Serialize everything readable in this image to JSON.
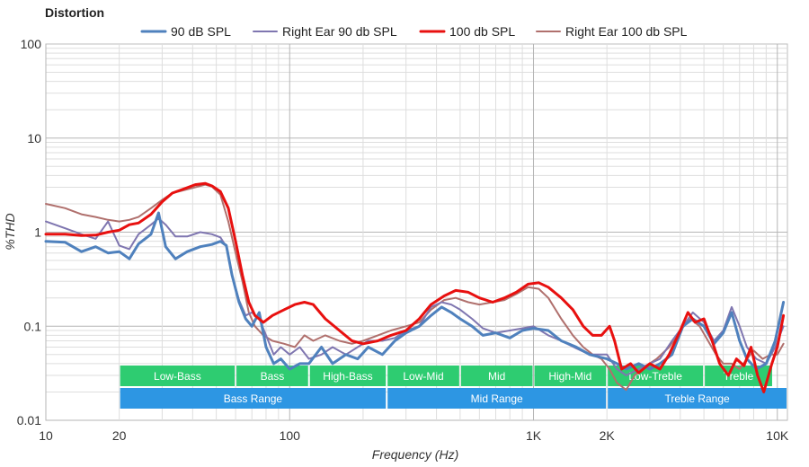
{
  "chart_data": {
    "type": "line",
    "title": "Distortion",
    "xlabel": "Frequency (Hz)",
    "ylabel": "%THD",
    "xscale": "log",
    "yscale": "log",
    "xlim": [
      10,
      11000
    ],
    "ylim": [
      0.01,
      100
    ],
    "grid": true,
    "legend_position": "top",
    "x_ticks": [
      {
        "value": 10,
        "label": "10"
      },
      {
        "value": 20,
        "label": "20"
      },
      {
        "value": 100,
        "label": "100"
      },
      {
        "value": 1000,
        "label": "1K"
      },
      {
        "value": 2000,
        "label": "2K"
      },
      {
        "value": 10000,
        "label": "10K"
      }
    ],
    "y_ticks": [
      {
        "value": 100,
        "label": "100"
      },
      {
        "value": 10,
        "label": "10"
      },
      {
        "value": 1,
        "label": "1"
      },
      {
        "value": 0.1,
        "label": "0.1"
      },
      {
        "value": 0.01,
        "label": "0.01"
      }
    ],
    "series": [
      {
        "name": "90 dB SPL",
        "color": "#4f81bd",
        "width": 3,
        "points": [
          [
            10,
            0.8
          ],
          [
            12,
            0.78
          ],
          [
            14,
            0.62
          ],
          [
            16,
            0.7
          ],
          [
            18,
            0.6
          ],
          [
            20,
            0.62
          ],
          [
            22,
            0.52
          ],
          [
            24,
            0.75
          ],
          [
            27,
            0.95
          ],
          [
            29,
            1.6
          ],
          [
            31,
            0.7
          ],
          [
            34,
            0.52
          ],
          [
            38,
            0.62
          ],
          [
            43,
            0.7
          ],
          [
            48,
            0.74
          ],
          [
            52,
            0.8
          ],
          [
            55,
            0.72
          ],
          [
            58,
            0.35
          ],
          [
            62,
            0.18
          ],
          [
            66,
            0.12
          ],
          [
            70,
            0.1
          ],
          [
            75,
            0.14
          ],
          [
            80,
            0.06
          ],
          [
            86,
            0.04
          ],
          [
            92,
            0.045
          ],
          [
            100,
            0.035
          ],
          [
            110,
            0.04
          ],
          [
            120,
            0.04
          ],
          [
            135,
            0.06
          ],
          [
            150,
            0.04
          ],
          [
            170,
            0.05
          ],
          [
            190,
            0.045
          ],
          [
            210,
            0.06
          ],
          [
            240,
            0.05
          ],
          [
            270,
            0.07
          ],
          [
            300,
            0.085
          ],
          [
            340,
            0.1
          ],
          [
            380,
            0.13
          ],
          [
            420,
            0.16
          ],
          [
            460,
            0.14
          ],
          [
            500,
            0.12
          ],
          [
            560,
            0.1
          ],
          [
            620,
            0.08
          ],
          [
            700,
            0.085
          ],
          [
            800,
            0.075
          ],
          [
            900,
            0.09
          ],
          [
            1000,
            0.095
          ],
          [
            1150,
            0.09
          ],
          [
            1300,
            0.07
          ],
          [
            1500,
            0.06
          ],
          [
            1700,
            0.05
          ],
          [
            2000,
            0.045
          ],
          [
            2200,
            0.04
          ],
          [
            2400,
            0.035
          ],
          [
            2700,
            0.04
          ],
          [
            3000,
            0.035
          ],
          [
            3300,
            0.04
          ],
          [
            3700,
            0.05
          ],
          [
            4100,
            0.1
          ],
          [
            4500,
            0.12
          ],
          [
            5000,
            0.1
          ],
          [
            5500,
            0.065
          ],
          [
            6000,
            0.085
          ],
          [
            6500,
            0.14
          ],
          [
            7000,
            0.07
          ],
          [
            7500,
            0.045
          ],
          [
            8200,
            0.035
          ],
          [
            9000,
            0.04
          ],
          [
            9800,
            0.07
          ],
          [
            10600,
            0.18
          ]
        ]
      },
      {
        "name": "Right Ear 90 db SPL",
        "color": "#7f76b0",
        "width": 2,
        "points": [
          [
            10,
            1.3
          ],
          [
            12,
            1.1
          ],
          [
            14,
            0.95
          ],
          [
            16,
            0.85
          ],
          [
            18,
            1.3
          ],
          [
            20,
            0.72
          ],
          [
            22,
            0.66
          ],
          [
            24,
            0.95
          ],
          [
            27,
            1.2
          ],
          [
            29,
            1.4
          ],
          [
            31,
            1.2
          ],
          [
            34,
            0.9
          ],
          [
            38,
            0.9
          ],
          [
            43,
            1.0
          ],
          [
            48,
            0.95
          ],
          [
            52,
            0.88
          ],
          [
            55,
            0.7
          ],
          [
            58,
            0.35
          ],
          [
            62,
            0.19
          ],
          [
            66,
            0.13
          ],
          [
            70,
            0.14
          ],
          [
            75,
            0.12
          ],
          [
            80,
            0.08
          ],
          [
            86,
            0.05
          ],
          [
            92,
            0.06
          ],
          [
            100,
            0.05
          ],
          [
            110,
            0.06
          ],
          [
            120,
            0.045
          ],
          [
            135,
            0.05
          ],
          [
            150,
            0.06
          ],
          [
            170,
            0.05
          ],
          [
            190,
            0.06
          ],
          [
            210,
            0.07
          ],
          [
            240,
            0.07
          ],
          [
            270,
            0.075
          ],
          [
            300,
            0.09
          ],
          [
            340,
            0.1
          ],
          [
            380,
            0.16
          ],
          [
            420,
            0.18
          ],
          [
            460,
            0.17
          ],
          [
            500,
            0.15
          ],
          [
            560,
            0.12
          ],
          [
            620,
            0.095
          ],
          [
            700,
            0.085
          ],
          [
            800,
            0.09
          ],
          [
            900,
            0.095
          ],
          [
            1000,
            0.1
          ],
          [
            1150,
            0.08
          ],
          [
            1300,
            0.07
          ],
          [
            1500,
            0.058
          ],
          [
            1700,
            0.05
          ],
          [
            2000,
            0.05
          ],
          [
            2200,
            0.035
          ],
          [
            2400,
            0.03
          ],
          [
            2700,
            0.035
          ],
          [
            3000,
            0.04
          ],
          [
            3300,
            0.045
          ],
          [
            3700,
            0.07
          ],
          [
            4100,
            0.1
          ],
          [
            4500,
            0.14
          ],
          [
            5000,
            0.11
          ],
          [
            5500,
            0.07
          ],
          [
            6000,
            0.09
          ],
          [
            6500,
            0.16
          ],
          [
            7000,
            0.1
          ],
          [
            7500,
            0.06
          ],
          [
            8200,
            0.045
          ],
          [
            9000,
            0.04
          ],
          [
            9800,
            0.06
          ],
          [
            10600,
            0.1
          ]
        ]
      },
      {
        "name": "100 db SPL",
        "color": "#e8100f",
        "width": 3,
        "points": [
          [
            10,
            0.95
          ],
          [
            12,
            0.95
          ],
          [
            14,
            0.92
          ],
          [
            16,
            0.93
          ],
          [
            18,
            1.0
          ],
          [
            20,
            1.05
          ],
          [
            22,
            1.2
          ],
          [
            24,
            1.25
          ],
          [
            27,
            1.55
          ],
          [
            30,
            2.1
          ],
          [
            33,
            2.6
          ],
          [
            37,
            2.9
          ],
          [
            41,
            3.2
          ],
          [
            45,
            3.3
          ],
          [
            48,
            3.1
          ],
          [
            52,
            2.7
          ],
          [
            56,
            1.8
          ],
          [
            60,
            0.8
          ],
          [
            64,
            0.35
          ],
          [
            68,
            0.18
          ],
          [
            72,
            0.13
          ],
          [
            78,
            0.11
          ],
          [
            85,
            0.13
          ],
          [
            95,
            0.15
          ],
          [
            105,
            0.17
          ],
          [
            115,
            0.18
          ],
          [
            125,
            0.17
          ],
          [
            140,
            0.12
          ],
          [
            160,
            0.09
          ],
          [
            180,
            0.07
          ],
          [
            200,
            0.065
          ],
          [
            230,
            0.07
          ],
          [
            260,
            0.08
          ],
          [
            300,
            0.09
          ],
          [
            340,
            0.12
          ],
          [
            380,
            0.17
          ],
          [
            430,
            0.21
          ],
          [
            480,
            0.24
          ],
          [
            540,
            0.23
          ],
          [
            600,
            0.2
          ],
          [
            680,
            0.18
          ],
          [
            760,
            0.2
          ],
          [
            850,
            0.23
          ],
          [
            950,
            0.28
          ],
          [
            1050,
            0.29
          ],
          [
            1150,
            0.26
          ],
          [
            1300,
            0.2
          ],
          [
            1450,
            0.15
          ],
          [
            1600,
            0.1
          ],
          [
            1750,
            0.08
          ],
          [
            1900,
            0.08
          ],
          [
            2050,
            0.1
          ],
          [
            2150,
            0.07
          ],
          [
            2300,
            0.035
          ],
          [
            2500,
            0.04
          ],
          [
            2700,
            0.032
          ],
          [
            3000,
            0.04
          ],
          [
            3300,
            0.035
          ],
          [
            3600,
            0.05
          ],
          [
            4000,
            0.09
          ],
          [
            4300,
            0.14
          ],
          [
            4600,
            0.11
          ],
          [
            5000,
            0.12
          ],
          [
            5400,
            0.07
          ],
          [
            5800,
            0.04
          ],
          [
            6300,
            0.03
          ],
          [
            6800,
            0.045
          ],
          [
            7300,
            0.038
          ],
          [
            7800,
            0.06
          ],
          [
            8300,
            0.03
          ],
          [
            8800,
            0.02
          ],
          [
            9500,
            0.04
          ],
          [
            10000,
            0.06
          ],
          [
            10600,
            0.13
          ]
        ]
      },
      {
        "name": "Right Ear 100 db SPL",
        "color": "#b0706d",
        "width": 2,
        "points": [
          [
            10,
            2.0
          ],
          [
            12,
            1.8
          ],
          [
            14,
            1.55
          ],
          [
            16,
            1.45
          ],
          [
            18,
            1.35
          ],
          [
            20,
            1.3
          ],
          [
            22,
            1.35
          ],
          [
            24,
            1.45
          ],
          [
            27,
            1.8
          ],
          [
            30,
            2.2
          ],
          [
            33,
            2.6
          ],
          [
            37,
            2.8
          ],
          [
            41,
            3.0
          ],
          [
            45,
            3.2
          ],
          [
            48,
            3.05
          ],
          [
            52,
            2.5
          ],
          [
            56,
            1.3
          ],
          [
            60,
            0.6
          ],
          [
            64,
            0.3
          ],
          [
            68,
            0.14
          ],
          [
            72,
            0.1
          ],
          [
            78,
            0.08
          ],
          [
            85,
            0.07
          ],
          [
            95,
            0.065
          ],
          [
            105,
            0.06
          ],
          [
            115,
            0.08
          ],
          [
            125,
            0.07
          ],
          [
            140,
            0.08
          ],
          [
            160,
            0.07
          ],
          [
            180,
            0.065
          ],
          [
            200,
            0.07
          ],
          [
            230,
            0.08
          ],
          [
            260,
            0.09
          ],
          [
            300,
            0.1
          ],
          [
            340,
            0.11
          ],
          [
            380,
            0.15
          ],
          [
            430,
            0.19
          ],
          [
            480,
            0.2
          ],
          [
            540,
            0.18
          ],
          [
            600,
            0.17
          ],
          [
            680,
            0.18
          ],
          [
            760,
            0.19
          ],
          [
            850,
            0.22
          ],
          [
            950,
            0.26
          ],
          [
            1050,
            0.25
          ],
          [
            1150,
            0.2
          ],
          [
            1300,
            0.12
          ],
          [
            1450,
            0.08
          ],
          [
            1600,
            0.06
          ],
          [
            1750,
            0.05
          ],
          [
            1900,
            0.045
          ],
          [
            2050,
            0.035
          ],
          [
            2200,
            0.025
          ],
          [
            2400,
            0.021
          ],
          [
            2600,
            0.03
          ],
          [
            2900,
            0.038
          ],
          [
            3200,
            0.045
          ],
          [
            3600,
            0.06
          ],
          [
            4000,
            0.09
          ],
          [
            4400,
            0.12
          ],
          [
            4800,
            0.1
          ],
          [
            5200,
            0.07
          ],
          [
            5600,
            0.05
          ],
          [
            6000,
            0.04
          ],
          [
            6500,
            0.04
          ],
          [
            7000,
            0.035
          ],
          [
            7500,
            0.045
          ],
          [
            8000,
            0.055
          ],
          [
            8700,
            0.045
          ],
          [
            9400,
            0.05
          ],
          [
            10000,
            0.05
          ],
          [
            10600,
            0.065
          ]
        ]
      }
    ],
    "bands": {
      "top_row": [
        {
          "label": "Low-Bass",
          "from": 20,
          "to": 60
        },
        {
          "label": "Bass",
          "from": 60,
          "to": 120
        },
        {
          "label": "High-Bass",
          "from": 120,
          "to": 250
        },
        {
          "label": "Low-Mid",
          "from": 250,
          "to": 500
        },
        {
          "label": "Mid",
          "from": 500,
          "to": 1000
        },
        {
          "label": "High-Mid",
          "from": 1000,
          "to": 2000
        },
        {
          "label": "Low-Treble",
          "from": 2000,
          "to": 5000
        },
        {
          "label": "Treble",
          "from": 5000,
          "to": 9600
        }
      ],
      "bottom_row": [
        {
          "label": "Bass Range",
          "from": 20,
          "to": 250
        },
        {
          "label": "Mid Range",
          "from": 250,
          "to": 2000
        },
        {
          "label": "Treble Range",
          "from": 2000,
          "to": 11000
        }
      ],
      "top_color": "#2ecc71",
      "bottom_color": "#2d96e3"
    }
  }
}
